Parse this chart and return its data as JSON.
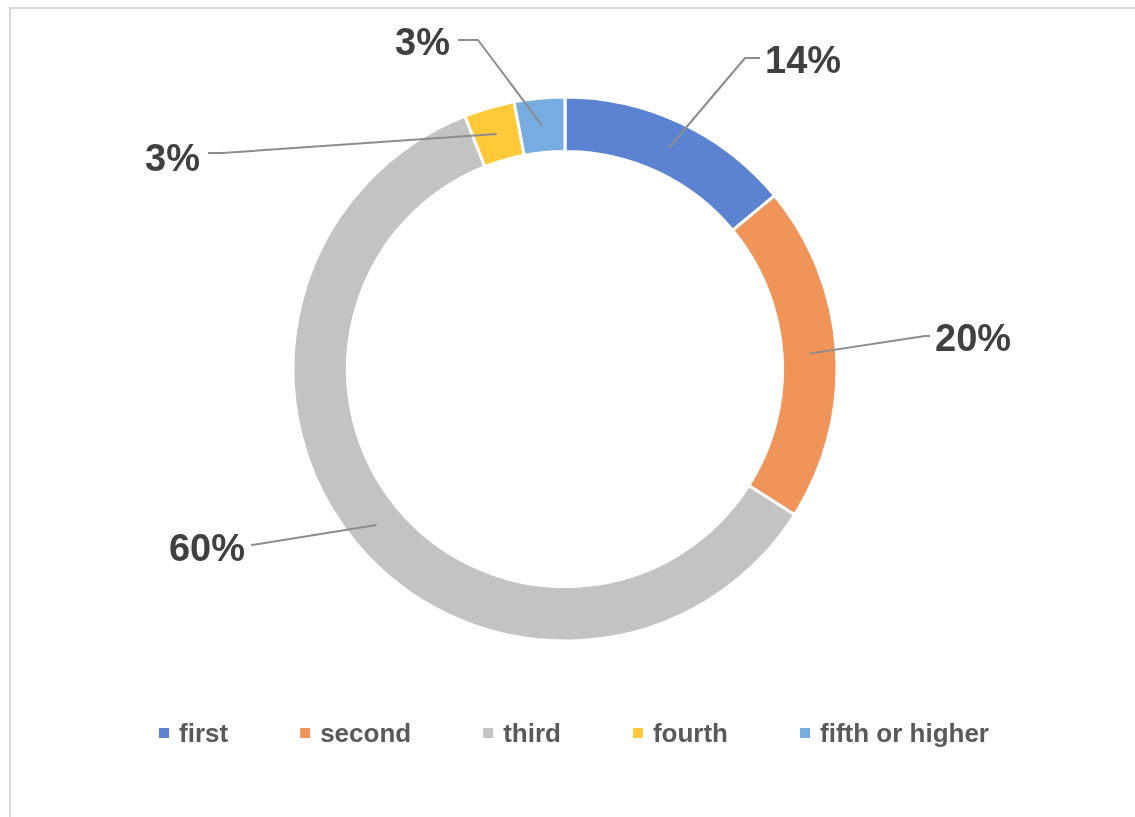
{
  "chart_data": {
    "type": "donut",
    "categories": [
      "first",
      "second",
      "third",
      "fourth",
      "fifth or higher"
    ],
    "values": [
      14,
      20,
      60,
      3,
      3
    ],
    "colors": [
      "#5b83d2",
      "#f0945a",
      "#c3c3c3",
      "#ffc93a",
      "#78ade2"
    ],
    "value_labels": [
      "14%",
      "20%",
      "60%",
      "3%",
      "3%"
    ],
    "legend": "bottom"
  }
}
